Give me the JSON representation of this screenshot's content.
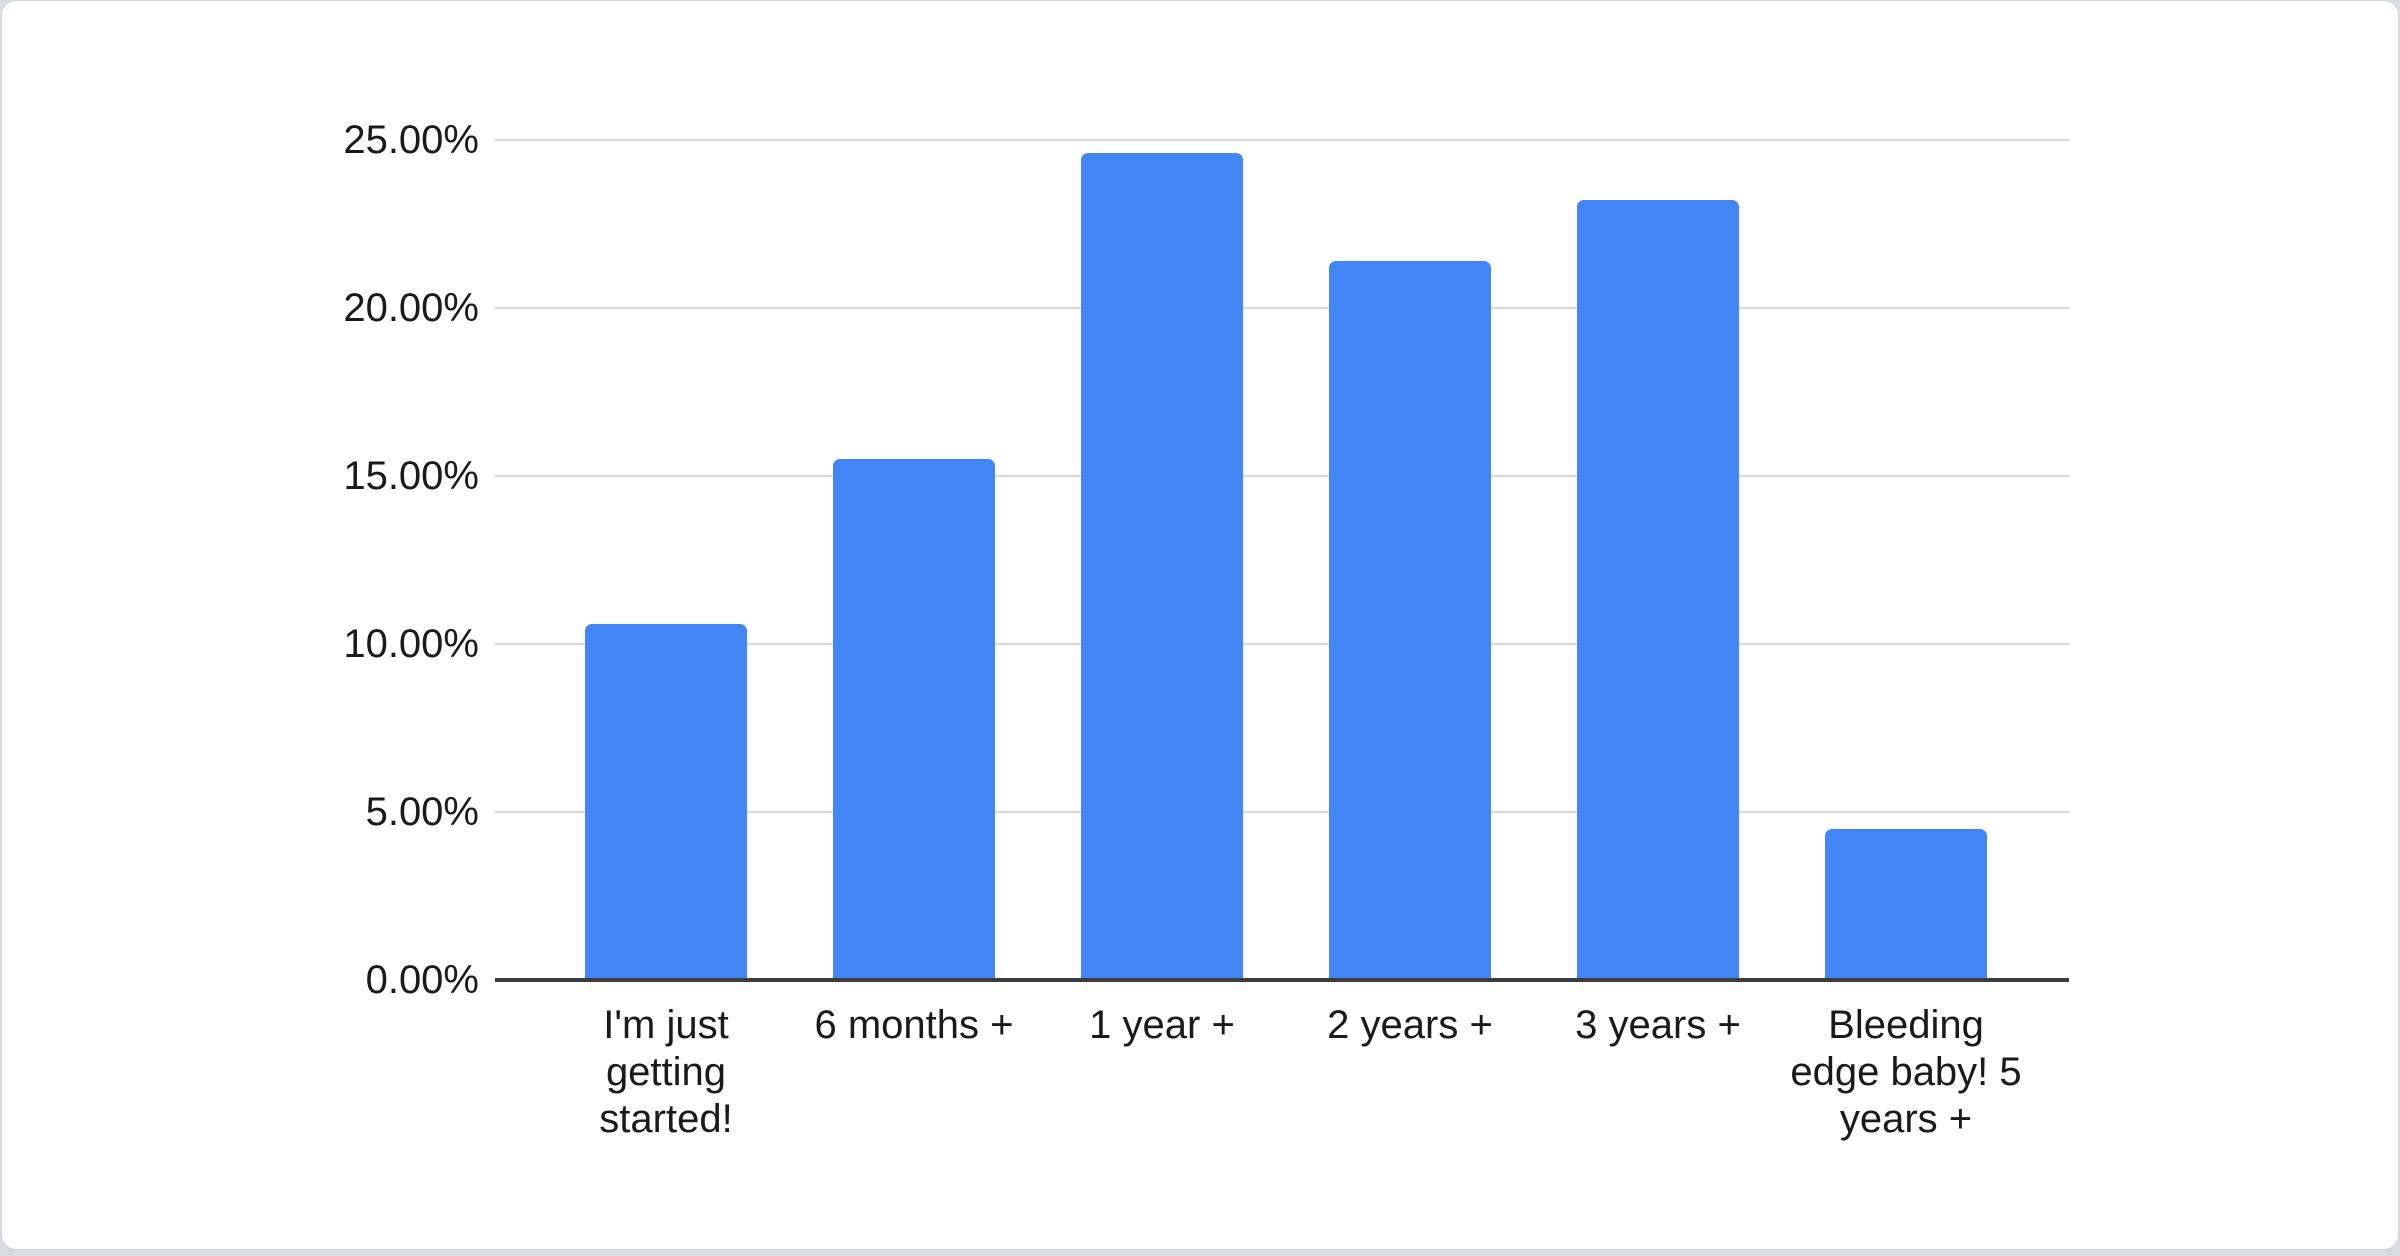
{
  "page": {
    "background_color": "#d9dce0",
    "card_color": "#ffffff"
  },
  "chart_data": {
    "type": "bar",
    "title": "",
    "xlabel": "",
    "ylabel": "",
    "categories": [
      "I'm just getting started!",
      "6 months +",
      "1 year +",
      "2 years +",
      "3 years +",
      "Bleeding edge baby! 5 years +"
    ],
    "values": [
      10.6,
      15.5,
      24.6,
      21.4,
      23.2,
      4.5
    ],
    "value_unit": "%",
    "ylim": [
      0,
      25
    ],
    "y_ticks": [
      {
        "value": 25,
        "label": "25.00%"
      },
      {
        "value": 20,
        "label": "20.00%"
      },
      {
        "value": 15,
        "label": "15.00%"
      },
      {
        "value": 10,
        "label": "10.00%"
      },
      {
        "value": 5,
        "label": "5.00%"
      },
      {
        "value": 0,
        "label": "0.00%"
      }
    ],
    "grid": true,
    "legend": "none",
    "bar_color": "#4285f4",
    "gridline_color": "#d9d9d9",
    "axis_line_color": "#3c3c3c",
    "label_color": "#1a1a1a"
  }
}
